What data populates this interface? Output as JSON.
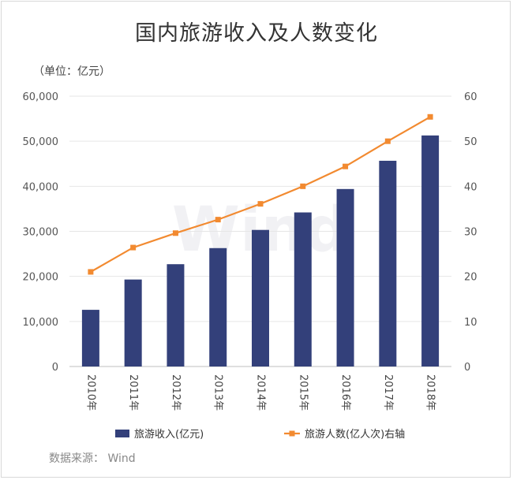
{
  "title": "国内旅游收入及人数变化",
  "unit_label": "（单位：亿元）",
  "source": "数据来源：  Wind",
  "watermark": "Wind",
  "colors": {
    "bar": "#33407a",
    "line": "#f28a30",
    "grid": "#e6e6e6",
    "axis": "#bfbfbf"
  },
  "chart_data": {
    "type": "bar",
    "categories": [
      "2010年",
      "2011年",
      "2012年",
      "2013年",
      "2014年",
      "2015年",
      "2016年",
      "2017年",
      "2018年"
    ],
    "series": [
      {
        "name": "旅游收入(亿元)",
        "type": "bar",
        "axis": "left",
        "values": [
          12580,
          19305,
          22706,
          26276,
          30312,
          34195,
          39390,
          45661,
          51278
        ]
      },
      {
        "name": "旅游人数(亿人次)右轴",
        "type": "line",
        "axis": "right",
        "values": [
          21.0,
          26.4,
          29.6,
          32.6,
          36.1,
          40.0,
          44.4,
          50.0,
          55.4
        ]
      }
    ],
    "left_axis": {
      "ylim": [
        0,
        60000
      ],
      "ticks": [
        0,
        10000,
        20000,
        30000,
        40000,
        50000,
        60000
      ],
      "tick_labels": [
        "0",
        "10,000",
        "20,000",
        "30,000",
        "40,000",
        "50,000",
        "60,000"
      ]
    },
    "right_axis": {
      "ylim": [
        0,
        60
      ],
      "ticks": [
        0,
        10,
        20,
        30,
        40,
        50,
        60
      ],
      "tick_labels": [
        "0",
        "10",
        "20",
        "30",
        "40",
        "50",
        "60"
      ]
    },
    "grid": true,
    "legend_position": "bottom"
  }
}
